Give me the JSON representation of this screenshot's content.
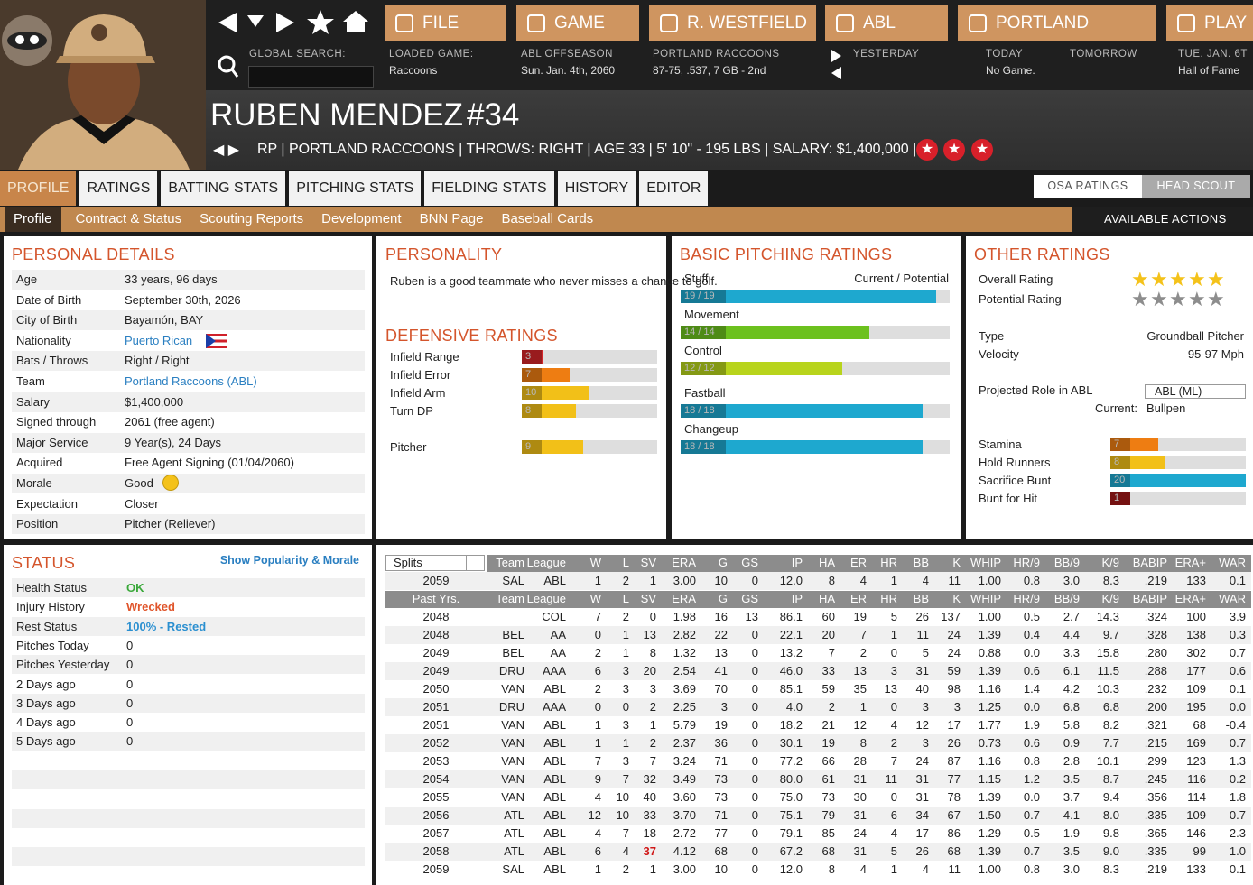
{
  "nav": {
    "buttons": [
      "FILE",
      "GAME",
      "R. WESTFIELD",
      "ABL",
      "PORTLAND",
      "PLAY"
    ],
    "search_label": "GLOBAL SEARCH:",
    "info": [
      {
        "label": "LOADED GAME:",
        "value": "Raccoons"
      },
      {
        "label": "ABL OFFSEASON",
        "value": "Sun. Jan. 4th, 2060"
      },
      {
        "label": "PORTLAND RACCOONS",
        "value": "87-75, .537, 7 GB - 2nd"
      },
      {
        "label": "YESTERDAY"
      },
      {
        "label": "TODAY",
        "value": "No Game."
      },
      {
        "label": "TOMORROW"
      },
      {
        "label": "TUE. JAN. 6T",
        "value": "Hall of Fame"
      }
    ]
  },
  "player": {
    "name": "RUBEN MENDEZ",
    "number": "#34",
    "info": "RP | PORTLAND RACCOONS | THROWS: RIGHT | AGE 33 | 5' 10\" - 195 LBS | SALARY: $1,400,000 |"
  },
  "tabs": [
    "PROFILE",
    "RATINGS",
    "BATTING STATS",
    "PITCHING STATS",
    "FIELDING STATS",
    "HISTORY",
    "EDITOR"
  ],
  "rating_toggle": [
    "OSA RATINGS",
    "HEAD SCOUT"
  ],
  "subtabs": [
    "Profile",
    "Contract & Status",
    "Scouting Reports",
    "Development",
    "BNN Page",
    "Baseball Cards"
  ],
  "actions": "AVAILABLE ACTIONS",
  "personal_details": {
    "title": "PERSONAL DETAILS",
    "rows": [
      {
        "label": "Age",
        "value": "33 years, 96 days"
      },
      {
        "label": "Date of Birth",
        "value": "September 30th, 2026"
      },
      {
        "label": "City of Birth",
        "value": "Bayamón, BAY"
      },
      {
        "label": "Nationality",
        "value": "Puerto Rican",
        "link": true
      },
      {
        "label": "Bats / Throws",
        "value": "Right / Right"
      },
      {
        "label": "Team",
        "value": "Portland Raccoons (ABL)",
        "link": true
      },
      {
        "label": "Salary",
        "value": "$1,400,000"
      },
      {
        "label": "Signed through",
        "value": "2061 (free agent)"
      },
      {
        "label": "Major Service",
        "value": "9 Year(s), 24 Days"
      },
      {
        "label": "Acquired",
        "value": "Free Agent Signing (01/04/2060)"
      },
      {
        "label": "Morale",
        "value": "Good"
      },
      {
        "label": "Expectation",
        "value": "Closer"
      },
      {
        "label": "Position",
        "value": "Pitcher (Reliever)"
      }
    ]
  },
  "personality": {
    "title": "PERSONALITY",
    "text": "Ruben is a good teammate who never misses a chance to golf."
  },
  "defensive": {
    "title": "DEFENSIVE RATINGS",
    "rows": [
      {
        "label": "Infield Range",
        "value": 3
      },
      {
        "label": "Infield Error",
        "value": 7
      },
      {
        "label": "Infield Arm",
        "value": 10
      },
      {
        "label": "Turn DP",
        "value": 8
      },
      {
        "label": "Pitcher",
        "value": 9
      }
    ]
  },
  "pitching": {
    "title": "BASIC PITCHING RATINGS",
    "header": "Current / Potential",
    "rows": [
      {
        "name": "Stuff",
        "current": 19,
        "potential": 19,
        "label": "19 / 19"
      },
      {
        "name": "Movement",
        "current": 14,
        "potential": 14,
        "label": "14 / 14"
      },
      {
        "name": "Control",
        "current": 12,
        "potential": 12,
        "label": "12 / 12"
      },
      {
        "name": "Fastball",
        "current": 18,
        "potential": 18,
        "label": "18 / 18"
      },
      {
        "name": "Changeup",
        "current": 18,
        "potential": 18,
        "label": "18 / 18"
      }
    ]
  },
  "other": {
    "title": "OTHER RATINGS",
    "stars": [
      {
        "label": "Overall Rating",
        "stars": 5,
        "color": "#f4c21a"
      },
      {
        "label": "Potential Rating",
        "stars": 5,
        "color": "#8d8d8d"
      }
    ],
    "info": [
      {
        "label": "Type",
        "value": "Groundball Pitcher"
      },
      {
        "label": "Velocity",
        "value": "95-97 Mph"
      }
    ],
    "role_label": "Projected Role in ABL",
    "role_select": "ABL (ML)",
    "current_label": "Current:",
    "current_value": "Bullpen",
    "bars": [
      {
        "label": "Stamina",
        "value": 7
      },
      {
        "label": "Hold Runners",
        "value": 8
      },
      {
        "label": "Sacrifice Bunt",
        "value": 20
      },
      {
        "label": "Bunt for Hit",
        "value": 1
      }
    ]
  },
  "status": {
    "title": "STATUS",
    "link": "Show Popularity & Morale",
    "rows": [
      {
        "label": "Health Status",
        "value": "OK",
        "color": "#3aa83a"
      },
      {
        "label": "Injury History",
        "value": "Wrecked",
        "color": "#e0552b"
      },
      {
        "label": "Rest Status",
        "value": "100% - Rested",
        "color": "#2a8fd0"
      },
      {
        "label": "Pitches Today",
        "value": "0"
      },
      {
        "label": "Pitches Yesterday",
        "value": "0"
      },
      {
        "label": "2 Days ago",
        "value": "0"
      },
      {
        "label": "3 Days ago",
        "value": "0"
      },
      {
        "label": "4 Days ago",
        "value": "0"
      },
      {
        "label": "5 Days ago",
        "value": "0"
      }
    ]
  },
  "stats": {
    "splits": "Splits",
    "header": [
      "Team",
      "League",
      "W",
      "L",
      "SV",
      "ERA",
      "G",
      "GS",
      "IP",
      "HA",
      "ER",
      "HR",
      "BB",
      "K",
      "WHIP",
      "HR/9",
      "BB/9",
      "K/9",
      "BABIP",
      "ERA+",
      "WAR"
    ],
    "current": [
      "2059",
      "SAL",
      "ABL",
      "1",
      "2",
      "1",
      "3.00",
      "10",
      "0",
      "12.0",
      "8",
      "4",
      "1",
      "4",
      "11",
      "1.00",
      "0.8",
      "3.0",
      "8.3",
      ".219",
      "133",
      "0.1"
    ],
    "past_header": [
      "Past Yrs.",
      "Team",
      "League",
      "W",
      "L",
      "SV",
      "ERA",
      "G",
      "GS",
      "IP",
      "HA",
      "ER",
      "HR",
      "BB",
      "K",
      "WHIP",
      "HR/9",
      "BB/9",
      "K/9",
      "BABIP",
      "ERA+",
      "WAR"
    ],
    "rows": [
      [
        "2048",
        null,
        "COL",
        "7",
        "2",
        "0",
        "1.98",
        "16",
        "13",
        "86.1",
        "60",
        "19",
        "5",
        "26",
        "137",
        "1.00",
        "0.5",
        "2.7",
        "14.3",
        ".324",
        "100",
        "3.9"
      ],
      [
        "2048",
        "BEL",
        "AA",
        "0",
        "1",
        "13",
        "2.82",
        "22",
        "0",
        "22.1",
        "20",
        "7",
        "1",
        "11",
        "24",
        "1.39",
        "0.4",
        "4.4",
        "9.7",
        ".328",
        "138",
        "0.3"
      ],
      [
        "2049",
        "BEL",
        "AA",
        "2",
        "1",
        "8",
        "1.32",
        "13",
        "0",
        "13.2",
        "7",
        "2",
        "0",
        "5",
        "24",
        "0.88",
        "0.0",
        "3.3",
        "15.8",
        ".280",
        "302",
        "0.7"
      ],
      [
        "2049",
        "DRU",
        "AAA",
        "6",
        "3",
        "20",
        "2.54",
        "41",
        "0",
        "46.0",
        "33",
        "13",
        "3",
        "31",
        "59",
        "1.39",
        "0.6",
        "6.1",
        "11.5",
        ".288",
        "177",
        "0.6"
      ],
      [
        "2050",
        "VAN",
        "ABL",
        "2",
        "3",
        "3",
        "3.69",
        "70",
        "0",
        "85.1",
        "59",
        "35",
        "13",
        "40",
        "98",
        "1.16",
        "1.4",
        "4.2",
        "10.3",
        ".232",
        "109",
        "0.1"
      ],
      [
        "2051",
        "DRU",
        "AAA",
        "0",
        "0",
        "2",
        "2.25",
        "3",
        "0",
        "4.0",
        "2",
        "1",
        "0",
        "3",
        "3",
        "1.25",
        "0.0",
        "6.8",
        "6.8",
        ".200",
        "195",
        "0.0"
      ],
      [
        "2051",
        "VAN",
        "ABL",
        "1",
        "3",
        "1",
        "5.79",
        "19",
        "0",
        "18.2",
        "21",
        "12",
        "4",
        "12",
        "17",
        "1.77",
        "1.9",
        "5.8",
        "8.2",
        ".321",
        "68",
        "-0.4"
      ],
      [
        "2052",
        "VAN",
        "ABL",
        "1",
        "1",
        "2",
        "2.37",
        "36",
        "0",
        "30.1",
        "19",
        "8",
        "2",
        "3",
        "26",
        "0.73",
        "0.6",
        "0.9",
        "7.7",
        ".215",
        "169",
        "0.7"
      ],
      [
        "2053",
        "VAN",
        "ABL",
        "7",
        "3",
        "7",
        "3.24",
        "71",
        "0",
        "77.2",
        "66",
        "28",
        "7",
        "24",
        "87",
        "1.16",
        "0.8",
        "2.8",
        "10.1",
        ".299",
        "123",
        "1.3"
      ],
      [
        "2054",
        "VAN",
        "ABL",
        "9",
        "7",
        "32",
        "3.49",
        "73",
        "0",
        "80.0",
        "61",
        "31",
        "11",
        "31",
        "77",
        "1.15",
        "1.2",
        "3.5",
        "8.7",
        ".245",
        "116",
        "0.2"
      ],
      [
        "2055",
        "VAN",
        "ABL",
        "4",
        "10",
        "40",
        "3.60",
        "73",
        "0",
        "75.0",
        "73",
        "30",
        "0",
        "31",
        "78",
        "1.39",
        "0.0",
        "3.7",
        "9.4",
        ".356",
        "114",
        "1.8"
      ],
      [
        "2056",
        "ATL",
        "ABL",
        "12",
        "10",
        "33",
        "3.70",
        "71",
        "0",
        "75.1",
        "79",
        "31",
        "6",
        "34",
        "67",
        "1.50",
        "0.7",
        "4.1",
        "8.0",
        ".335",
        "109",
        "0.7"
      ],
      [
        "2057",
        "ATL",
        "ABL",
        "4",
        "7",
        "18",
        "2.72",
        "77",
        "0",
        "79.1",
        "85",
        "24",
        "4",
        "17",
        "86",
        "1.29",
        "0.5",
        "1.9",
        "9.8",
        ".365",
        "146",
        "2.3"
      ],
      [
        "2058",
        "ATL",
        "ABL",
        "6",
        "4",
        {
          "text": "37",
          "color": "#d01818"
        },
        "4.12",
        "68",
        "0",
        "67.2",
        "68",
        "31",
        "5",
        "26",
        "68",
        "1.39",
        "0.7",
        "3.5",
        "9.0",
        ".335",
        "99",
        "1.0"
      ],
      [
        "2059",
        "SAL",
        "ABL",
        "1",
        "2",
        "1",
        "3.00",
        "10",
        "0",
        "12.0",
        "8",
        "4",
        "1",
        "4",
        "11",
        "1.00",
        "0.8",
        "3.0",
        "8.3",
        ".219",
        "133",
        "0.1"
      ]
    ]
  }
}
